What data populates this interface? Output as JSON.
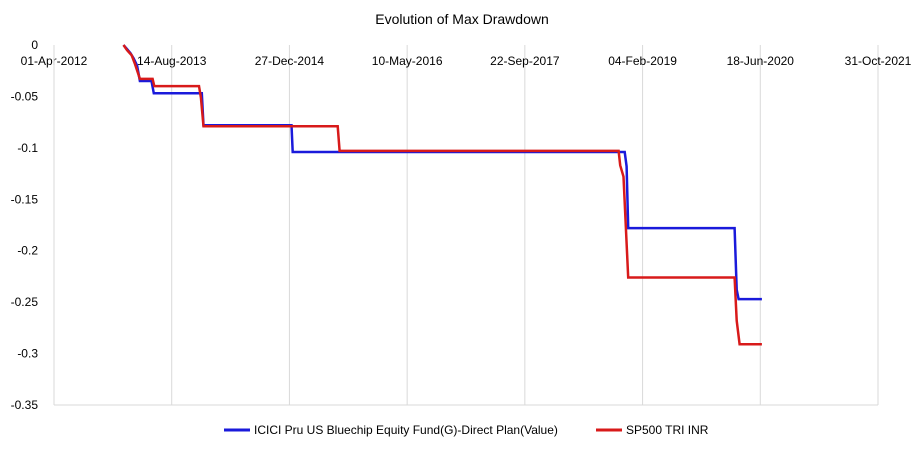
{
  "chart_data": {
    "type": "line",
    "title": "Evolution of Max Drawdown",
    "xlabel": "",
    "ylabel": "",
    "x_ticks": [
      "01-Apr-2012",
      "14-Aug-2013",
      "27-Dec-2014",
      "10-May-2016",
      "22-Sep-2017",
      "04-Feb-2019",
      "18-Jun-2020",
      "31-Oct-2021"
    ],
    "xlim": [
      "2012-04-01",
      "2021-10-31"
    ],
    "ylim": [
      -0.35,
      0
    ],
    "y_ticks": [
      0,
      -0.05,
      -0.1,
      -0.15,
      -0.2,
      -0.25,
      -0.3,
      -0.35
    ],
    "y_tick_labels": [
      "0",
      "-0.05",
      "-0.1",
      "-0.15",
      "-0.2",
      "-0.25",
      "-0.3",
      "-0.35"
    ],
    "grid": "vertical",
    "legend_position": "bottom",
    "series": [
      {
        "name": "ICICI Pru US Bluechip Equity Fund(G)-Direct Plan(Value)",
        "color": "#1a1adb",
        "points": [
          [
            "2013-01-21",
            0
          ],
          [
            "2013-02-05",
            -0.004
          ],
          [
            "2013-02-20",
            -0.008
          ],
          [
            "2013-03-05",
            -0.013
          ],
          [
            "2013-03-20",
            -0.02
          ],
          [
            "2013-04-01",
            -0.035
          ],
          [
            "2013-05-20",
            -0.035
          ],
          [
            "2013-05-30",
            -0.047
          ],
          [
            "2013-12-20",
            -0.047
          ],
          [
            "2013-12-27",
            -0.078
          ],
          [
            "2015-01-05",
            -0.078
          ],
          [
            "2015-01-10",
            -0.104
          ],
          [
            "2018-11-20",
            -0.104
          ],
          [
            "2018-11-28",
            -0.118
          ],
          [
            "2018-12-05",
            -0.178
          ],
          [
            "2020-03-01",
            -0.178
          ],
          [
            "2020-03-10",
            -0.238
          ],
          [
            "2020-03-18",
            -0.247
          ],
          [
            "2020-06-25",
            -0.247
          ]
        ]
      },
      {
        "name": "SP500 TRI INR",
        "color": "#d81a1a",
        "points": [
          [
            "2013-01-21",
            0
          ],
          [
            "2013-02-05",
            -0.005
          ],
          [
            "2013-02-25",
            -0.01
          ],
          [
            "2013-03-10",
            -0.018
          ],
          [
            "2013-04-01",
            -0.033
          ],
          [
            "2013-05-25",
            -0.033
          ],
          [
            "2013-06-01",
            -0.04
          ],
          [
            "2013-12-08",
            -0.04
          ],
          [
            "2013-12-16",
            -0.051
          ],
          [
            "2013-12-27",
            -0.079
          ],
          [
            "2015-07-20",
            -0.079
          ],
          [
            "2015-07-28",
            -0.103
          ],
          [
            "2018-10-25",
            -0.103
          ],
          [
            "2018-11-01",
            -0.117
          ],
          [
            "2018-11-15",
            -0.128
          ],
          [
            "2018-12-05",
            -0.226
          ],
          [
            "2020-03-01",
            -0.226
          ],
          [
            "2020-03-10",
            -0.268
          ],
          [
            "2020-03-22",
            -0.291
          ],
          [
            "2020-06-25",
            -0.291
          ]
        ]
      }
    ]
  }
}
